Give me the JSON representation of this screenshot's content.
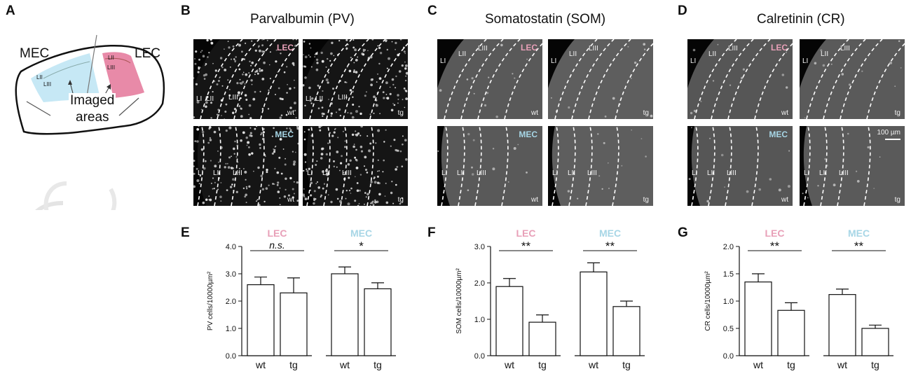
{
  "panels": {
    "A": "A",
    "B": "B",
    "C": "C",
    "D": "D",
    "E": "E",
    "F": "F",
    "G": "G"
  },
  "schematic": {
    "mec": "MEC",
    "lec": "LEC",
    "layer_2": "LII",
    "layer_3": "LIII",
    "imaged_line1": "Imaged",
    "imaged_line2": "areas"
  },
  "titles": {
    "B": "Parvalbumin (PV)",
    "C": "Somatostatin (SOM)",
    "D": "Calretinin (CR)"
  },
  "micrographs": {
    "region_lec": "LEC",
    "region_mec": "MEC",
    "wt": "wt",
    "tg": "tg",
    "layers": [
      "LI",
      "LII",
      "LIII"
    ],
    "scale_bar": "100 µm"
  },
  "colors": {
    "lec": "#e8a0b8",
    "mec": "#a7d6e6",
    "lec_fill": "#e88aa8",
    "mec_fill": "#c6e8f5"
  },
  "chart_data": [
    {
      "type": "bar",
      "panel": "E",
      "ylabel": "PV cells/10000µm²",
      "ylim": [
        0,
        4
      ],
      "yticks": [
        "0.0",
        "1.0",
        "2.0",
        "3.0",
        "4.0"
      ],
      "groups": [
        "LEC",
        "MEC"
      ],
      "categories": [
        "wt",
        "tg",
        "wt",
        "tg"
      ],
      "values": [
        2.6,
        2.3,
        3.0,
        2.45
      ],
      "errors": [
        0.28,
        0.55,
        0.25,
        0.22
      ],
      "significance": [
        "n.s.",
        "*"
      ]
    },
    {
      "type": "bar",
      "panel": "F",
      "ylabel": "SOM cells/10000µm²",
      "ylim": [
        0,
        3
      ],
      "yticks": [
        "0.0",
        "1.0",
        "2.0",
        "3.0"
      ],
      "groups": [
        "LEC",
        "MEC"
      ],
      "categories": [
        "wt",
        "tg",
        "wt",
        "tg"
      ],
      "values": [
        1.9,
        0.92,
        2.3,
        1.35
      ],
      "errors": [
        0.22,
        0.2,
        0.25,
        0.15
      ],
      "significance": [
        "**",
        "**"
      ]
    },
    {
      "type": "bar",
      "panel": "G",
      "ylabel": "CR cells/10000µm²",
      "ylim": [
        0,
        2
      ],
      "yticks": [
        "0.0",
        "0.5",
        "1.0",
        "1.5",
        "2.0"
      ],
      "groups": [
        "LEC",
        "MEC"
      ],
      "categories": [
        "wt",
        "tg",
        "wt",
        "tg"
      ],
      "values": [
        1.35,
        0.83,
        1.12,
        0.5
      ],
      "errors": [
        0.15,
        0.14,
        0.1,
        0.06
      ],
      "significance": [
        "**",
        "**"
      ]
    }
  ]
}
